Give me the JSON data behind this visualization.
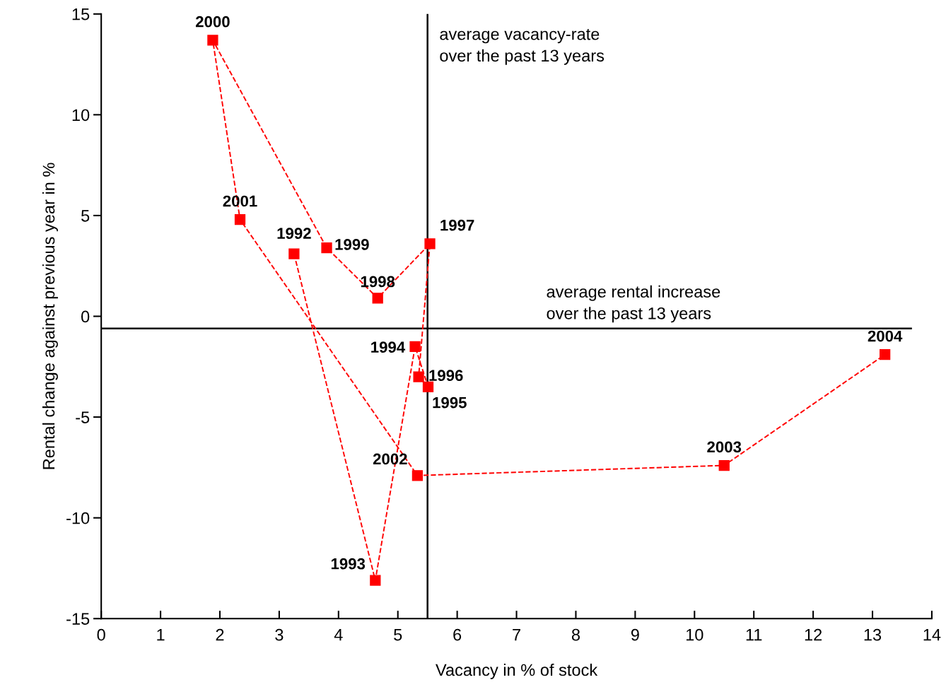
{
  "chart_data": {
    "type": "line",
    "xlabel": "Vacancy in % of stock",
    "ylabel": "Rental change against previous year in %",
    "x": [
      3.25,
      4.62,
      5.29,
      5.51,
      5.35,
      5.54,
      4.66,
      3.8,
      1.88,
      2.34,
      5.33,
      10.5,
      13.21
    ],
    "series": [
      {
        "color": "#ff0000",
        "values": [
          3.1,
          -13.1,
          -1.5,
          -3.5,
          -3.0,
          3.6,
          0.9,
          3.4,
          13.7,
          4.8,
          -7.9,
          -7.4,
          -1.9
        ],
        "line_style": "dashed",
        "marker": "square"
      }
    ],
    "annotations": [
      {
        "text": "1992",
        "x": 3.25,
        "y": 3.1
      },
      {
        "text": "1993",
        "x": 4.62,
        "y": -13.1
      },
      {
        "text": "1994",
        "x": 5.29,
        "y": -1.5
      },
      {
        "text": "1995",
        "x": 5.51,
        "y": -3.5
      },
      {
        "text": "1996",
        "x": 5.35,
        "y": -3.0
      },
      {
        "text": "1997",
        "x": 5.54,
        "y": 3.6
      },
      {
        "text": "1998",
        "x": 4.66,
        "y": 0.9
      },
      {
        "text": "1999",
        "x": 3.8,
        "y": 3.4
      },
      {
        "text": "2000",
        "x": 1.88,
        "y": 13.7
      },
      {
        "text": "2001",
        "x": 2.34,
        "y": 4.8
      },
      {
        "text": "2002",
        "x": 5.33,
        "y": -7.9
      },
      {
        "text": "2003",
        "x": 10.5,
        "y": -7.4
      },
      {
        "text": "2004",
        "x": 13.21,
        "y": -1.9
      }
    ],
    "ref_lines": [
      {
        "axis": "x",
        "value": 5.5,
        "label": "average vacancy-rate\nover the past 13 years",
        "color": "#000000"
      },
      {
        "axis": "y",
        "value": -0.6,
        "label": "average rental increase\nover the past 13 years",
        "color": "#000000"
      }
    ],
    "xlim": [
      0,
      14
    ],
    "ylim": [
      -15,
      15
    ],
    "xticks": [
      0,
      1,
      2,
      3,
      4,
      5,
      6,
      7,
      8,
      9,
      10,
      11,
      12,
      13,
      14
    ],
    "yticks": [
      -15,
      -10,
      -5,
      0,
      5,
      10,
      15
    ],
    "grid": false,
    "legend": false
  }
}
